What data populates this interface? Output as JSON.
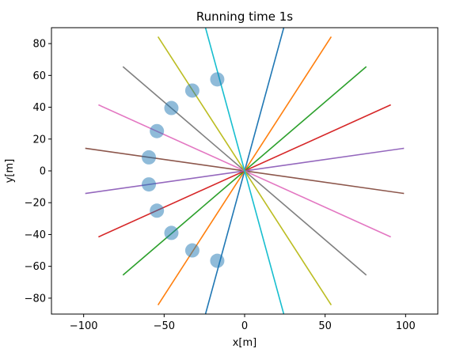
{
  "chart_data": {
    "type": "line",
    "title": "Running time 1s",
    "xlabel": "x[m]",
    "ylabel": "y[m]",
    "xlim": [
      -120,
      120
    ],
    "ylim": [
      -90,
      90
    ],
    "xticks": [
      -100,
      -50,
      0,
      50,
      100
    ],
    "yticks": [
      -80,
      -60,
      -40,
      -20,
      0,
      20,
      40,
      60,
      80
    ],
    "grid": false,
    "legend": "none",
    "series": [
      {
        "color": "#1f77b4",
        "x": [
          -26.1,
          26.1
        ],
        "y": [
          -96.6,
          96.6
        ]
      },
      {
        "color": "#ff7f0e",
        "x": [
          -53.8,
          53.8
        ],
        "y": [
          -84.3,
          84.3
        ]
      },
      {
        "color": "#2ca02c",
        "x": [
          -75.6,
          75.6
        ],
        "y": [
          -65.5,
          65.5
        ]
      },
      {
        "color": "#d62728",
        "x": [
          -90.8,
          90.8
        ],
        "y": [
          -41.5,
          41.5
        ]
      },
      {
        "color": "#9467bd",
        "x": [
          -99.0,
          99.0
        ],
        "y": [
          -14.2,
          14.2
        ]
      },
      {
        "color": "#8c564b",
        "x": [
          -99.0,
          99.0
        ],
        "y": [
          14.2,
          -14.2
        ]
      },
      {
        "color": "#e377c2",
        "x": [
          -90.8,
          90.8
        ],
        "y": [
          41.5,
          -41.5
        ]
      },
      {
        "color": "#7f7f7f",
        "x": [
          -75.6,
          75.6
        ],
        "y": [
          65.5,
          -65.5
        ]
      },
      {
        "color": "#bcbd22",
        "x": [
          -53.8,
          53.8
        ],
        "y": [
          84.3,
          -84.3
        ]
      },
      {
        "color": "#17becf",
        "x": [
          -26.1,
          26.1
        ],
        "y": [
          96.6,
          -96.6
        ]
      }
    ],
    "markers": {
      "color": "#1f77b4",
      "opacity": 0.5,
      "x": [
        -17,
        -32.5,
        -45.5,
        -54.5,
        -59.5,
        -59.5,
        -54.5,
        -45.5,
        -32.5,
        -17
      ],
      "y": [
        57.5,
        50.5,
        39.5,
        25,
        8.5,
        -8.5,
        -25,
        -39,
        -50,
        -56.5
      ]
    }
  }
}
